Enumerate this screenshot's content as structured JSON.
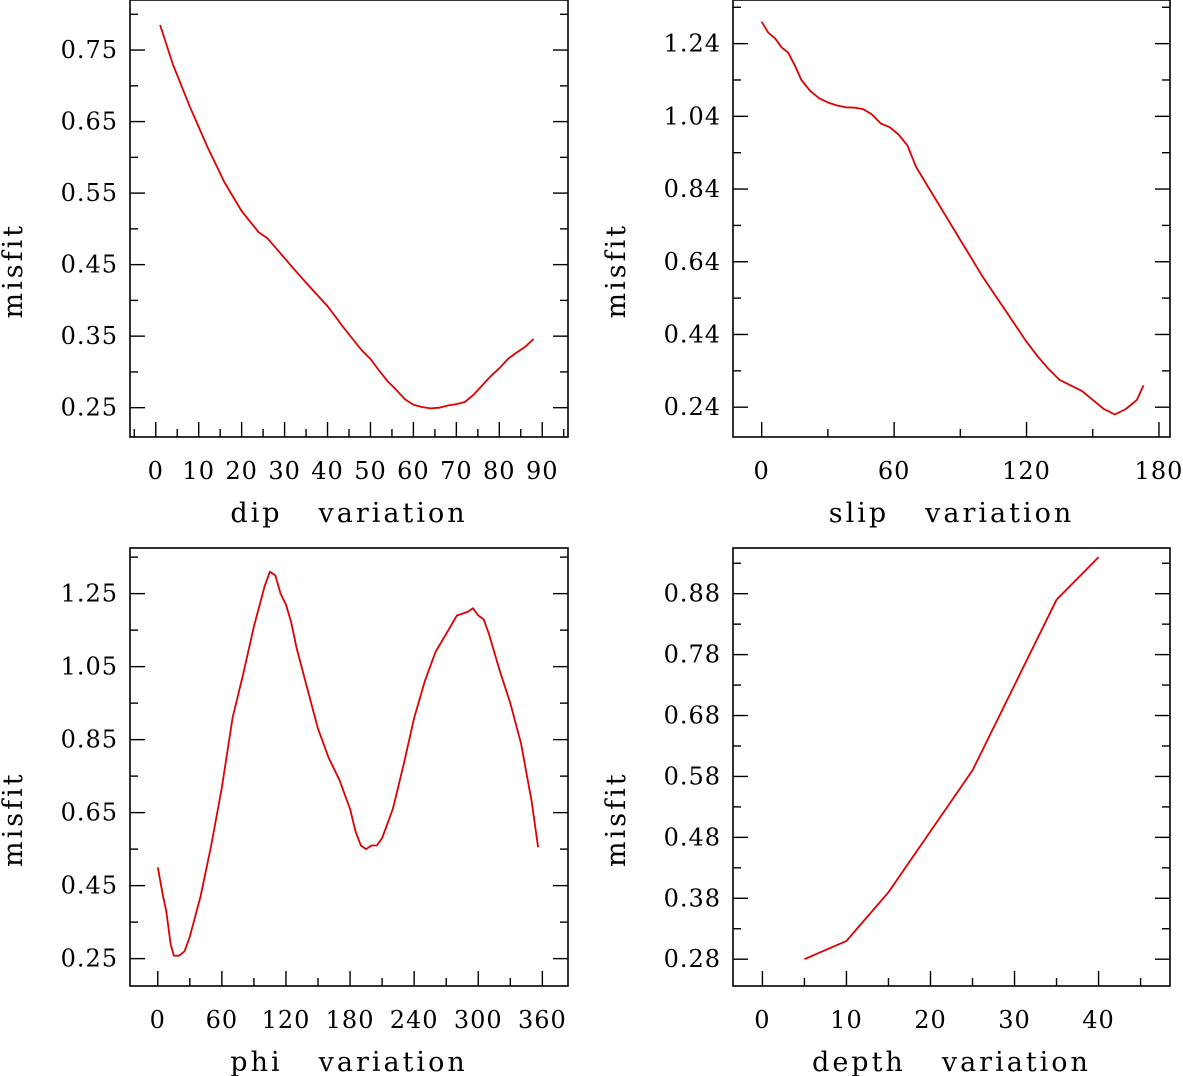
{
  "chart_data": [
    {
      "type": "line",
      "xlabel": "dip",
      "xlabel_suffix": "variation",
      "ylabel": "misfit",
      "xlim": [
        -6,
        96
      ],
      "ylim": [
        0.209,
        0.82
      ],
      "x_ticks": [
        0,
        10,
        20,
        30,
        40,
        50,
        60,
        70,
        80,
        90
      ],
      "x_tick_labels": [
        "0",
        "10",
        "20",
        "30",
        "40",
        "50",
        "60",
        "70",
        "80",
        "90"
      ],
      "y_ticks": [
        0.25,
        0.35,
        0.45,
        0.55,
        0.65,
        0.75
      ],
      "y_tick_labels": [
        "0.25",
        "0.35",
        "0.45",
        "0.55",
        "0.65",
        "0.75"
      ],
      "x": [
        1,
        4,
        8,
        12,
        16,
        20,
        24,
        26,
        28,
        32,
        36,
        40,
        44,
        48,
        50,
        52,
        54,
        56,
        58,
        60,
        62,
        64,
        66,
        68,
        70,
        72,
        74,
        76,
        78,
        80,
        82,
        84,
        86,
        88
      ],
      "y": [
        0.785,
        0.73,
        0.67,
        0.615,
        0.565,
        0.525,
        0.495,
        0.487,
        0.473,
        0.445,
        0.418,
        0.392,
        0.36,
        0.33,
        0.318,
        0.302,
        0.287,
        0.275,
        0.262,
        0.254,
        0.251,
        0.249,
        0.25,
        0.253,
        0.255,
        0.258,
        0.268,
        0.281,
        0.294,
        0.305,
        0.318,
        0.327,
        0.335,
        0.346
      ]
    },
    {
      "type": "line",
      "xlabel": "slip",
      "xlabel_suffix": "variation",
      "ylabel": "misfit",
      "xlim": [
        -13,
        185
      ],
      "ylim": [
        0.158,
        1.36
      ],
      "x_ticks": [
        0,
        60,
        120,
        180
      ],
      "x_tick_labels": [
        "0",
        "60",
        "120",
        "180"
      ],
      "y_ticks": [
        0.24,
        0.44,
        0.64,
        0.84,
        1.04,
        1.24
      ],
      "y_tick_labels": [
        "0.24",
        "0.44",
        "0.64",
        "0.84",
        "1.04",
        "1.24"
      ],
      "x": [
        0,
        3,
        6,
        9,
        12,
        15,
        18,
        22,
        26,
        30,
        34,
        38,
        42,
        46,
        50,
        54,
        58,
        62,
        66,
        70,
        75,
        80,
        85,
        90,
        95,
        100,
        105,
        110,
        115,
        120,
        125,
        130,
        135,
        140,
        145,
        150,
        155,
        160,
        165,
        170,
        173
      ],
      "y": [
        1.3,
        1.27,
        1.255,
        1.23,
        1.215,
        1.18,
        1.14,
        1.11,
        1.09,
        1.078,
        1.07,
        1.065,
        1.064,
        1.06,
        1.045,
        1.02,
        1.01,
        0.99,
        0.96,
        0.9,
        0.85,
        0.8,
        0.75,
        0.7,
        0.65,
        0.6,
        0.555,
        0.51,
        0.465,
        0.42,
        0.38,
        0.345,
        0.315,
        0.3,
        0.285,
        0.26,
        0.235,
        0.22,
        0.235,
        0.26,
        0.3
      ]
    },
    {
      "type": "line",
      "xlabel": "phi",
      "xlabel_suffix": "variation",
      "ylabel": "misfit",
      "xlim": [
        -26,
        384
      ],
      "ylim": [
        0.175,
        1.375
      ],
      "x_ticks": [
        0,
        60,
        120,
        180,
        240,
        300,
        360
      ],
      "x_tick_labels": [
        "0",
        "60",
        "120",
        "180",
        "240",
        "300",
        "360"
      ],
      "y_ticks": [
        0.25,
        0.45,
        0.65,
        0.85,
        1.05,
        1.25
      ],
      "y_tick_labels": [
        "0.25",
        "0.45",
        "0.65",
        "0.85",
        "1.05",
        "1.25"
      ],
      "x": [
        0,
        5,
        8,
        12,
        15,
        20,
        25,
        30,
        40,
        50,
        60,
        70,
        80,
        90,
        100,
        105,
        110,
        115,
        120,
        125,
        130,
        140,
        150,
        160,
        170,
        180,
        185,
        190,
        195,
        200,
        205,
        210,
        220,
        230,
        240,
        250,
        260,
        270,
        280,
        290,
        295,
        300,
        305,
        310,
        320,
        330,
        340,
        350,
        356
      ],
      "y": [
        0.5,
        0.42,
        0.38,
        0.29,
        0.258,
        0.258,
        0.27,
        0.31,
        0.42,
        0.56,
        0.72,
        0.91,
        1.03,
        1.16,
        1.27,
        1.31,
        1.3,
        1.25,
        1.22,
        1.17,
        1.1,
        0.99,
        0.88,
        0.8,
        0.74,
        0.66,
        0.6,
        0.56,
        0.55,
        0.56,
        0.56,
        0.58,
        0.66,
        0.78,
        0.91,
        1.01,
        1.09,
        1.14,
        1.19,
        1.2,
        1.21,
        1.19,
        1.18,
        1.14,
        1.04,
        0.95,
        0.84,
        0.68,
        0.555
      ]
    },
    {
      "type": "line",
      "xlabel": "depth",
      "xlabel_suffix": "variation",
      "ylabel": "misfit",
      "xlim": [
        -3.5,
        48.5
      ],
      "ylim": [
        0.236,
        0.955
      ],
      "x_ticks": [
        0,
        10,
        20,
        30,
        40
      ],
      "x_tick_labels": [
        "0",
        "10",
        "20",
        "30",
        "40"
      ],
      "y_ticks": [
        0.28,
        0.38,
        0.48,
        0.58,
        0.68,
        0.78,
        0.88
      ],
      "y_tick_labels": [
        "0.28",
        "0.38",
        "0.48",
        "0.58",
        "0.68",
        "0.78",
        "0.88"
      ],
      "x": [
        5,
        10,
        15,
        20,
        25,
        30,
        35,
        40
      ],
      "y": [
        0.28,
        0.31,
        0.39,
        0.49,
        0.59,
        0.73,
        0.87,
        0.94
      ]
    }
  ]
}
